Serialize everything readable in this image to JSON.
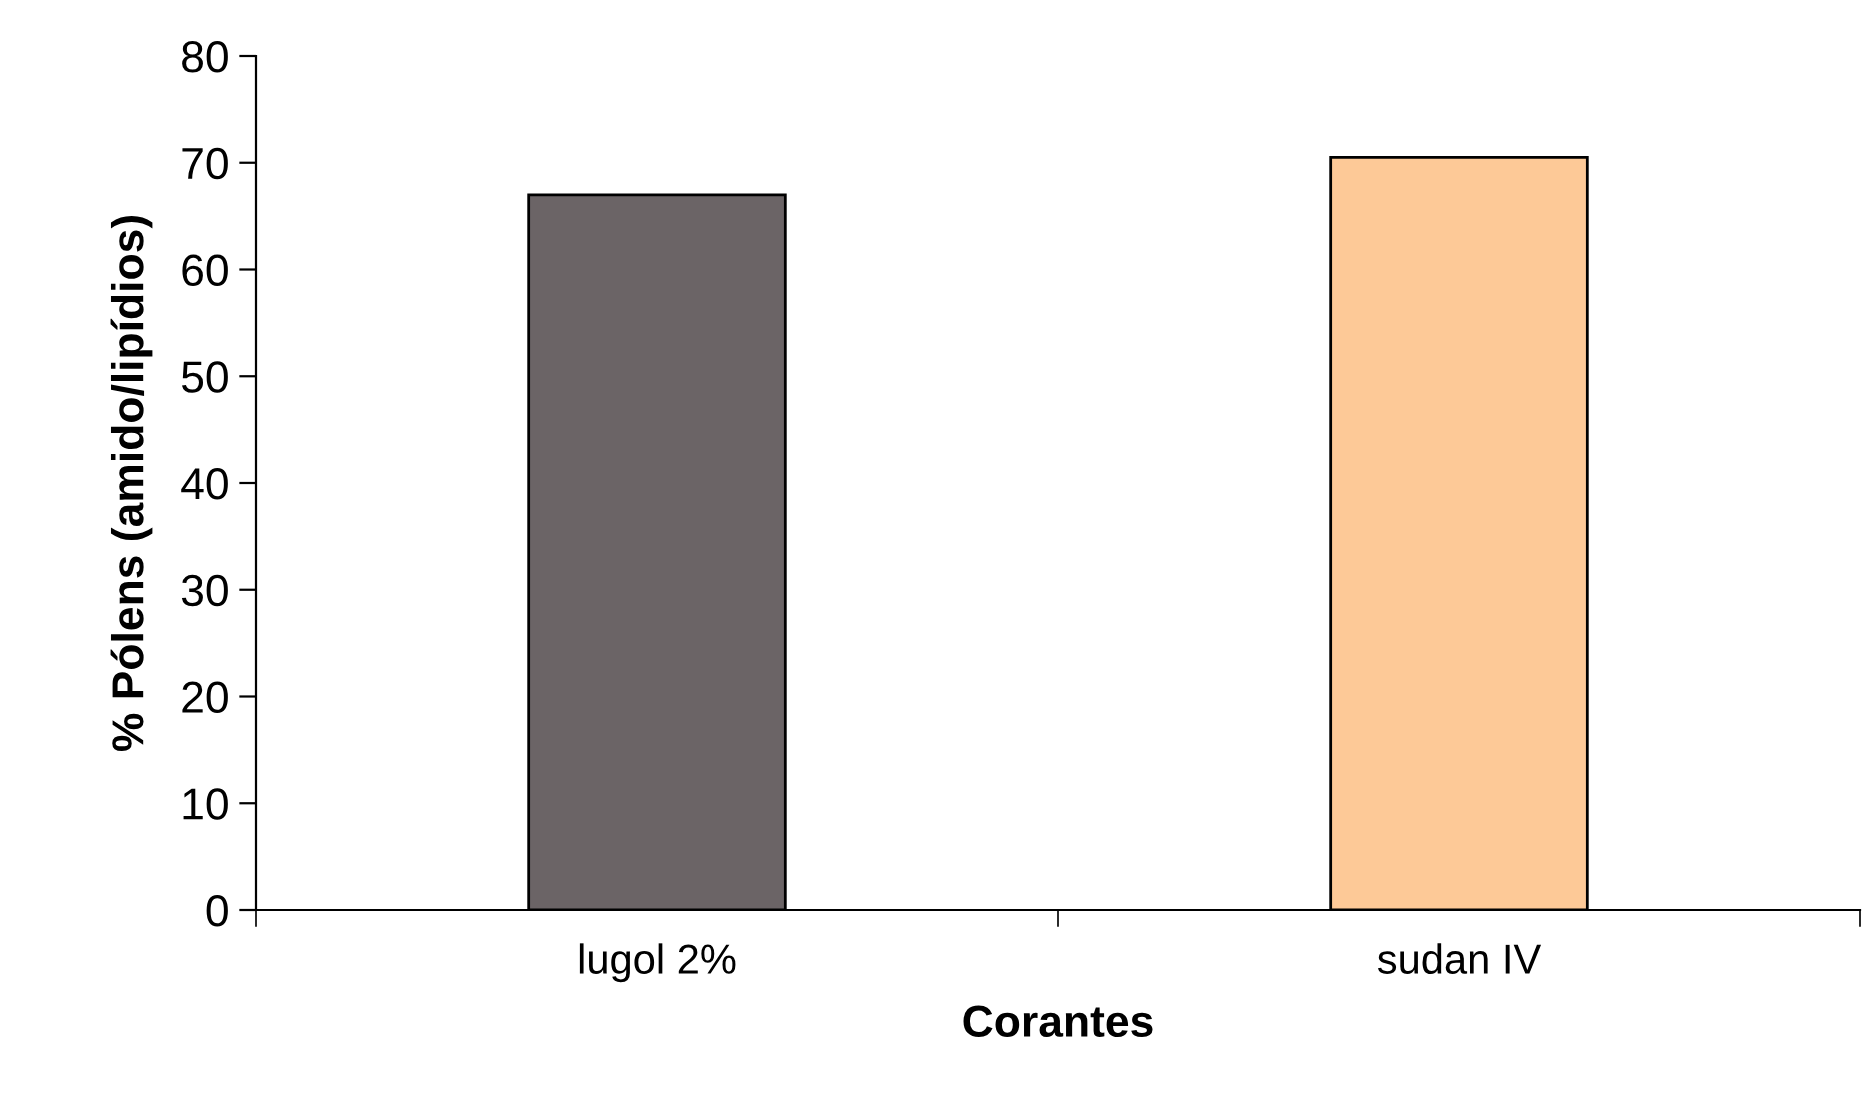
{
  "chart_data": {
    "type": "bar",
    "xlabel": "Corantes",
    "ylabel": "% Pólens (amido/lipídios)",
    "categories": [
      "lugol 2%",
      "sudan IV"
    ],
    "values": [
      67,
      70.5
    ],
    "colors": [
      "#6b6466",
      "#fdc997"
    ],
    "ylim": [
      0,
      80
    ],
    "yticks": [
      0,
      10,
      20,
      30,
      40,
      50,
      60,
      70,
      80
    ],
    "grid": false
  }
}
